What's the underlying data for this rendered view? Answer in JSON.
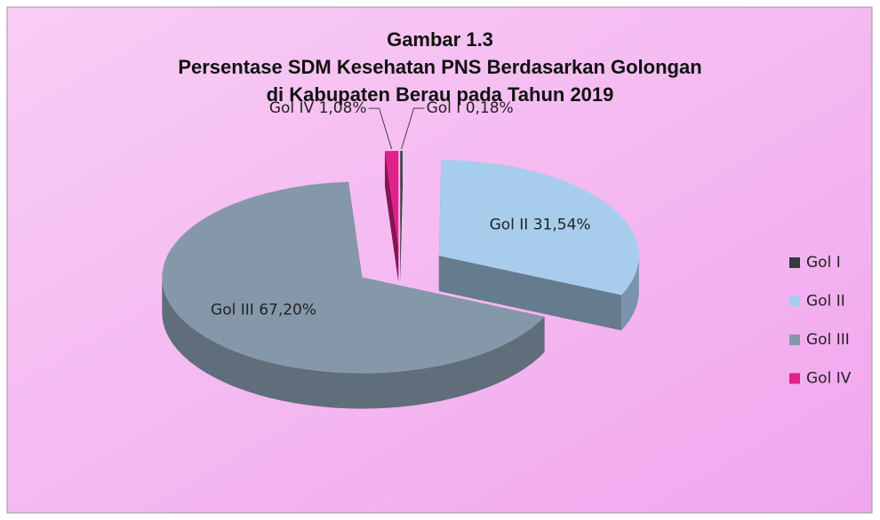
{
  "chart_data": {
    "type": "pie3d",
    "title": [
      "Gambar 1.3",
      "Persentase SDM Kesehatan PNS Berdasarkan Golongan",
      "di Kabupaten Berau pada Tahun 2019"
    ],
    "categories": [
      "Gol I",
      "Gol II",
      "Gol III",
      "Gol IV"
    ],
    "values": [
      0.18,
      31.54,
      67.2,
      1.08
    ],
    "value_labels": [
      "0,18%",
      "31,54%",
      "67,20%",
      "1,08%"
    ],
    "colors": [
      "#353b41",
      "#a8cdec",
      "#8598aa",
      "#e0218a"
    ],
    "legend": "right"
  }
}
